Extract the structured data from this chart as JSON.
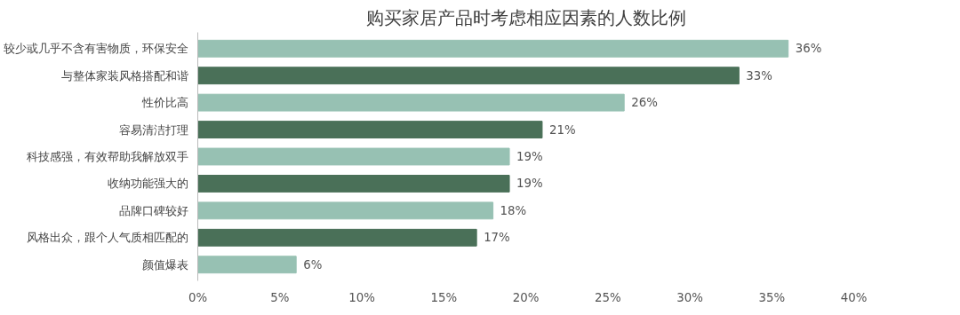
{
  "chart_data": {
    "type": "bar",
    "orientation": "horizontal",
    "title": "购买家居产品时考虑相应因素的人数比例",
    "categories": [
      "较少或几乎不含有害物质，环保安全",
      "与整体家装风格搭配和谐",
      "性价比高",
      "容易清洁打理",
      "科技感强，有效帮助我解放双手",
      "收纳功能强大的",
      "品牌口碑较好",
      "风格出众，跟个人气质相匹配的",
      "颜值爆表"
    ],
    "values": [
      36,
      33,
      26,
      21,
      19,
      19,
      18,
      17,
      6
    ],
    "value_labels": [
      "36%",
      "33%",
      "26%",
      "21%",
      "19%",
      "19%",
      "18%",
      "17%",
      "6%"
    ],
    "colors": [
      "#97c1b3",
      "#4a7058",
      "#97c1b3",
      "#4a7058",
      "#97c1b3",
      "#4a7058",
      "#97c1b3",
      "#4a7058",
      "#97c1b3"
    ],
    "xlim": [
      0,
      40
    ],
    "xticks": [
      {
        "value": 0,
        "label": "0%"
      },
      {
        "value": 5,
        "label": "5%"
      },
      {
        "value": 10,
        "label": "10%"
      },
      {
        "value": 15,
        "label": "15%"
      },
      {
        "value": 20,
        "label": "20%"
      },
      {
        "value": 25,
        "label": "25%"
      },
      {
        "value": 30,
        "label": "30%"
      },
      {
        "value": 35,
        "label": "35%"
      },
      {
        "value": 40,
        "label": "40%"
      }
    ],
    "grid": false
  }
}
